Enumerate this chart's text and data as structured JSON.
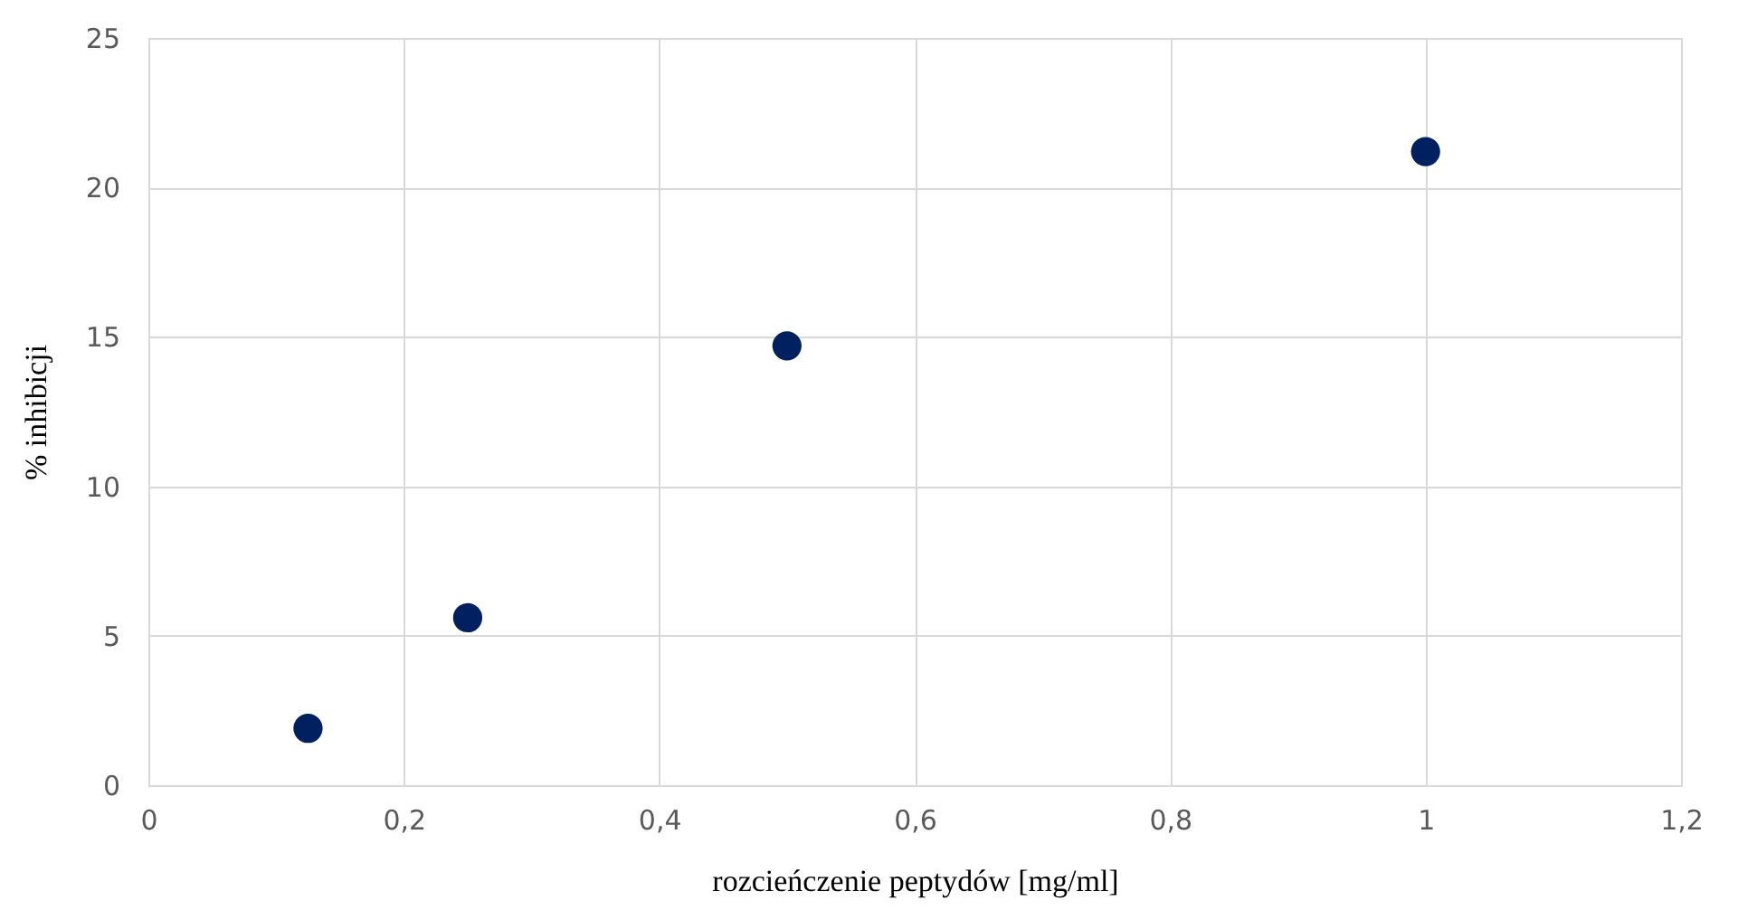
{
  "chart_data": {
    "type": "scatter",
    "xlabel": "rozcieńczenie peptydów [mg/ml]",
    "ylabel": "% inhibicji",
    "x": [
      0.125,
      0.25,
      0.5,
      1.0
    ],
    "series": [
      {
        "color": "#002060",
        "values": [
          1.9,
          5.6,
          14.7,
          21.2
        ]
      }
    ],
    "xlim": [
      0,
      1.2
    ],
    "xticks": [
      0,
      {
        "value": 0.2,
        "label": "0,2"
      },
      {
        "value": 0.4,
        "label": "0,4"
      },
      {
        "value": 0.6,
        "label": "0,6"
      },
      {
        "value": 0.8,
        "label": "0,8"
      },
      1,
      {
        "value": 1.2,
        "label": "1,2"
      }
    ],
    "ylim": [
      0,
      25
    ],
    "yticks": [
      0,
      5,
      10,
      15,
      20,
      25
    ],
    "grid": true,
    "marker": "circle",
    "legend": false
  }
}
